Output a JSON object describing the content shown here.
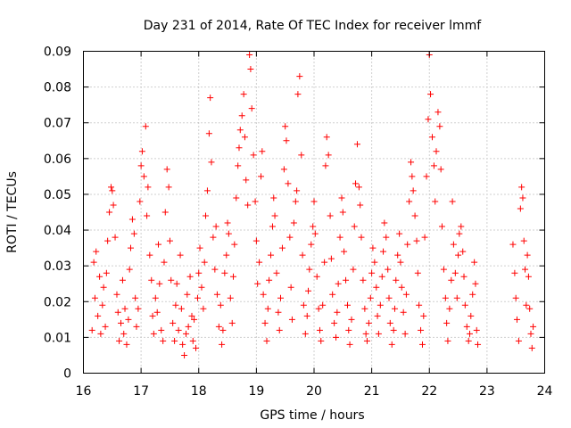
{
  "chart_data": {
    "type": "scatter",
    "title": "Day 231 of 2014, Rate Of TEC Index for receiver lmmf",
    "xlabel": "GPS time / hours",
    "ylabel": "ROTI / TECUs",
    "xlim": [
      16,
      24
    ],
    "ylim": [
      0,
      0.09
    ],
    "xticks": [
      16,
      17,
      18,
      19,
      20,
      21,
      22,
      23,
      24
    ],
    "xtick_labels": [
      "16",
      "17",
      "18",
      "19",
      "20",
      "21",
      "22",
      "23",
      "24"
    ],
    "yticks": [
      0,
      0.01,
      0.02,
      0.03,
      0.04,
      0.05,
      0.06,
      0.07,
      0.08,
      0.09
    ],
    "ytick_labels": [
      "0",
      "0.01",
      "0.02",
      "0.03",
      "0.04",
      "0.05",
      "0.06",
      "0.07",
      "0.08",
      "0.09"
    ],
    "grid": true,
    "marker": "+",
    "color": "#ff0000",
    "series": [
      {
        "name": "ROTI",
        "points": [
          [
            16.15,
            0.012
          ],
          [
            16.18,
            0.031
          ],
          [
            16.2,
            0.021
          ],
          [
            16.22,
            0.034
          ],
          [
            16.25,
            0.016
          ],
          [
            16.28,
            0.027
          ],
          [
            16.3,
            0.011
          ],
          [
            16.33,
            0.019
          ],
          [
            16.35,
            0.024
          ],
          [
            16.38,
            0.013
          ],
          [
            16.4,
            0.028
          ],
          [
            16.42,
            0.037
          ],
          [
            16.45,
            0.045
          ],
          [
            16.48,
            0.052
          ],
          [
            16.5,
            0.051
          ],
          [
            16.52,
            0.047
          ],
          [
            16.55,
            0.038
          ],
          [
            16.58,
            0.022
          ],
          [
            16.6,
            0.017
          ],
          [
            16.62,
            0.009
          ],
          [
            16.65,
            0.014
          ],
          [
            16.68,
            0.026
          ],
          [
            16.7,
            0.011
          ],
          [
            16.72,
            0.018
          ],
          [
            16.75,
            0.008
          ],
          [
            16.78,
            0.015
          ],
          [
            16.8,
            0.029
          ],
          [
            16.82,
            0.035
          ],
          [
            16.85,
            0.043
          ],
          [
            16.88,
            0.039
          ],
          [
            16.9,
            0.021
          ],
          [
            16.92,
            0.013
          ],
          [
            16.95,
            0.018
          ],
          [
            16.98,
            0.048
          ],
          [
            17.0,
            0.058
          ],
          [
            17.02,
            0.062
          ],
          [
            17.05,
            0.055
          ],
          [
            17.08,
            0.069
          ],
          [
            17.1,
            0.044
          ],
          [
            17.12,
            0.052
          ],
          [
            17.15,
            0.033
          ],
          [
            17.18,
            0.026
          ],
          [
            17.2,
            0.016
          ],
          [
            17.22,
            0.011
          ],
          [
            17.25,
            0.021
          ],
          [
            17.28,
            0.017
          ],
          [
            17.3,
            0.036
          ],
          [
            17.32,
            0.025
          ],
          [
            17.35,
            0.012
          ],
          [
            17.38,
            0.009
          ],
          [
            17.4,
            0.031
          ],
          [
            17.42,
            0.045
          ],
          [
            17.45,
            0.057
          ],
          [
            17.48,
            0.052
          ],
          [
            17.5,
            0.037
          ],
          [
            17.52,
            0.026
          ],
          [
            17.55,
            0.014
          ],
          [
            17.58,
            0.009
          ],
          [
            17.6,
            0.019
          ],
          [
            17.62,
            0.025
          ],
          [
            17.65,
            0.012
          ],
          [
            17.68,
            0.033
          ],
          [
            17.7,
            0.018
          ],
          [
            17.72,
            0.008
          ],
          [
            17.75,
            0.005
          ],
          [
            17.78,
            0.011
          ],
          [
            17.8,
            0.022
          ],
          [
            17.82,
            0.013
          ],
          [
            17.85,
            0.027
          ],
          [
            17.88,
            0.016
          ],
          [
            17.9,
            0.009
          ],
          [
            17.92,
            0.015
          ],
          [
            17.95,
            0.007
          ],
          [
            17.98,
            0.021
          ],
          [
            18.0,
            0.028
          ],
          [
            18.02,
            0.035
          ],
          [
            18.05,
            0.024
          ],
          [
            18.08,
            0.018
          ],
          [
            18.1,
            0.031
          ],
          [
            18.12,
            0.044
          ],
          [
            18.15,
            0.051
          ],
          [
            18.18,
            0.067
          ],
          [
            18.2,
            0.077
          ],
          [
            18.22,
            0.059
          ],
          [
            18.25,
            0.038
          ],
          [
            18.28,
            0.029
          ],
          [
            18.3,
            0.041
          ],
          [
            18.32,
            0.022
          ],
          [
            18.35,
            0.013
          ],
          [
            18.38,
            0.019
          ],
          [
            18.4,
            0.008
          ],
          [
            18.42,
            0.012
          ],
          [
            18.45,
            0.028
          ],
          [
            18.48,
            0.033
          ],
          [
            18.5,
            0.042
          ],
          [
            18.52,
            0.039
          ],
          [
            18.55,
            0.021
          ],
          [
            18.58,
            0.014
          ],
          [
            18.6,
            0.027
          ],
          [
            18.62,
            0.036
          ],
          [
            18.65,
            0.049
          ],
          [
            18.68,
            0.058
          ],
          [
            18.7,
            0.063
          ],
          [
            18.72,
            0.068
          ],
          [
            18.75,
            0.072
          ],
          [
            18.78,
            0.078
          ],
          [
            18.8,
            0.066
          ],
          [
            18.82,
            0.054
          ],
          [
            18.85,
            0.047
          ],
          [
            18.88,
            0.089
          ],
          [
            18.9,
            0.085
          ],
          [
            18.92,
            0.074
          ],
          [
            18.95,
            0.061
          ],
          [
            18.98,
            0.048
          ],
          [
            19.0,
            0.037
          ],
          [
            19.02,
            0.025
          ],
          [
            19.05,
            0.031
          ],
          [
            19.08,
            0.055
          ],
          [
            19.1,
            0.062
          ],
          [
            19.12,
            0.022
          ],
          [
            19.15,
            0.014
          ],
          [
            19.18,
            0.009
          ],
          [
            19.2,
            0.018
          ],
          [
            19.22,
            0.026
          ],
          [
            19.25,
            0.033
          ],
          [
            19.28,
            0.041
          ],
          [
            19.3,
            0.049
          ],
          [
            19.32,
            0.044
          ],
          [
            19.35,
            0.028
          ],
          [
            19.38,
            0.017
          ],
          [
            19.4,
            0.012
          ],
          [
            19.42,
            0.021
          ],
          [
            19.45,
            0.035
          ],
          [
            19.48,
            0.057
          ],
          [
            19.5,
            0.069
          ],
          [
            19.52,
            0.065
          ],
          [
            19.55,
            0.053
          ],
          [
            19.58,
            0.038
          ],
          [
            19.6,
            0.024
          ],
          [
            19.62,
            0.015
          ],
          [
            19.65,
            0.042
          ],
          [
            19.68,
            0.048
          ],
          [
            19.7,
            0.051
          ],
          [
            19.72,
            0.078
          ],
          [
            19.75,
            0.083
          ],
          [
            19.78,
            0.061
          ],
          [
            19.8,
            0.033
          ],
          [
            19.82,
            0.019
          ],
          [
            19.85,
            0.011
          ],
          [
            19.88,
            0.016
          ],
          [
            19.9,
            0.023
          ],
          [
            19.92,
            0.029
          ],
          [
            19.95,
            0.036
          ],
          [
            19.98,
            0.041
          ],
          [
            20.0,
            0.048
          ],
          [
            20.02,
            0.039
          ],
          [
            20.05,
            0.027
          ],
          [
            20.08,
            0.018
          ],
          [
            20.1,
            0.012
          ],
          [
            20.12,
            0.009
          ],
          [
            20.15,
            0.019
          ],
          [
            20.18,
            0.031
          ],
          [
            20.2,
            0.058
          ],
          [
            20.22,
            0.066
          ],
          [
            20.25,
            0.061
          ],
          [
            20.28,
            0.044
          ],
          [
            20.3,
            0.032
          ],
          [
            20.32,
            0.022
          ],
          [
            20.35,
            0.014
          ],
          [
            20.38,
            0.01
          ],
          [
            20.4,
            0.017
          ],
          [
            20.42,
            0.025
          ],
          [
            20.45,
            0.038
          ],
          [
            20.48,
            0.049
          ],
          [
            20.5,
            0.045
          ],
          [
            20.52,
            0.034
          ],
          [
            20.55,
            0.026
          ],
          [
            20.58,
            0.019
          ],
          [
            20.6,
            0.012
          ],
          [
            20.62,
            0.008
          ],
          [
            20.65,
            0.015
          ],
          [
            20.68,
            0.029
          ],
          [
            20.7,
            0.041
          ],
          [
            20.72,
            0.053
          ],
          [
            20.75,
            0.064
          ],
          [
            20.78,
            0.052
          ],
          [
            20.8,
            0.047
          ],
          [
            20.82,
            0.038
          ],
          [
            20.85,
            0.026
          ],
          [
            20.88,
            0.018
          ],
          [
            20.9,
            0.011
          ],
          [
            20.92,
            0.009
          ],
          [
            20.95,
            0.014
          ],
          [
            20.98,
            0.021
          ],
          [
            21.0,
            0.028
          ],
          [
            21.02,
            0.035
          ],
          [
            21.05,
            0.031
          ],
          [
            21.08,
            0.024
          ],
          [
            21.1,
            0.016
          ],
          [
            21.12,
            0.011
          ],
          [
            21.15,
            0.019
          ],
          [
            21.18,
            0.027
          ],
          [
            21.2,
            0.034
          ],
          [
            21.22,
            0.042
          ],
          [
            21.25,
            0.038
          ],
          [
            21.28,
            0.029
          ],
          [
            21.3,
            0.021
          ],
          [
            21.32,
            0.014
          ],
          [
            21.35,
            0.008
          ],
          [
            21.38,
            0.012
          ],
          [
            21.4,
            0.018
          ],
          [
            21.42,
            0.026
          ],
          [
            21.45,
            0.033
          ],
          [
            21.48,
            0.039
          ],
          [
            21.5,
            0.031
          ],
          [
            21.52,
            0.024
          ],
          [
            21.55,
            0.017
          ],
          [
            21.58,
            0.011
          ],
          [
            21.6,
            0.022
          ],
          [
            21.62,
            0.036
          ],
          [
            21.65,
            0.048
          ],
          [
            21.68,
            0.059
          ],
          [
            21.7,
            0.055
          ],
          [
            21.72,
            0.051
          ],
          [
            21.75,
            0.044
          ],
          [
            21.78,
            0.037
          ],
          [
            21.8,
            0.028
          ],
          [
            21.82,
            0.019
          ],
          [
            21.85,
            0.012
          ],
          [
            21.88,
            0.008
          ],
          [
            21.9,
            0.016
          ],
          [
            21.92,
            0.038
          ],
          [
            21.95,
            0.055
          ],
          [
            21.98,
            0.071
          ],
          [
            22.0,
            0.089
          ],
          [
            22.02,
            0.078
          ],
          [
            22.05,
            0.066
          ],
          [
            22.08,
            0.058
          ],
          [
            22.1,
            0.048
          ],
          [
            22.12,
            0.062
          ],
          [
            22.15,
            0.073
          ],
          [
            22.18,
            0.069
          ],
          [
            22.2,
            0.057
          ],
          [
            22.22,
            0.041
          ],
          [
            22.25,
            0.029
          ],
          [
            22.28,
            0.021
          ],
          [
            22.3,
            0.014
          ],
          [
            22.32,
            0.009
          ],
          [
            22.35,
            0.018
          ],
          [
            22.38,
            0.026
          ],
          [
            22.4,
            0.048
          ],
          [
            22.42,
            0.036
          ],
          [
            22.45,
            0.028
          ],
          [
            22.48,
            0.021
          ],
          [
            22.5,
            0.033
          ],
          [
            22.52,
            0.039
          ],
          [
            22.55,
            0.041
          ],
          [
            22.58,
            0.034
          ],
          [
            22.6,
            0.027
          ],
          [
            22.62,
            0.019
          ],
          [
            22.65,
            0.013
          ],
          [
            22.68,
            0.009
          ],
          [
            22.7,
            0.011
          ],
          [
            22.72,
            0.016
          ],
          [
            22.75,
            0.022
          ],
          [
            22.78,
            0.031
          ],
          [
            22.8,
            0.025
          ],
          [
            22.82,
            0.012
          ],
          [
            22.84,
            0.008
          ],
          [
            23.45,
            0.036
          ],
          [
            23.48,
            0.028
          ],
          [
            23.5,
            0.021
          ],
          [
            23.52,
            0.015
          ],
          [
            23.55,
            0.009
          ],
          [
            23.58,
            0.046
          ],
          [
            23.6,
            0.052
          ],
          [
            23.62,
            0.049
          ],
          [
            23.64,
            0.037
          ],
          [
            23.66,
            0.029
          ],
          [
            23.68,
            0.019
          ],
          [
            23.7,
            0.033
          ],
          [
            23.72,
            0.027
          ],
          [
            23.74,
            0.018
          ],
          [
            23.76,
            0.011
          ],
          [
            23.78,
            0.007
          ],
          [
            23.8,
            0.013
          ]
        ]
      }
    ]
  }
}
